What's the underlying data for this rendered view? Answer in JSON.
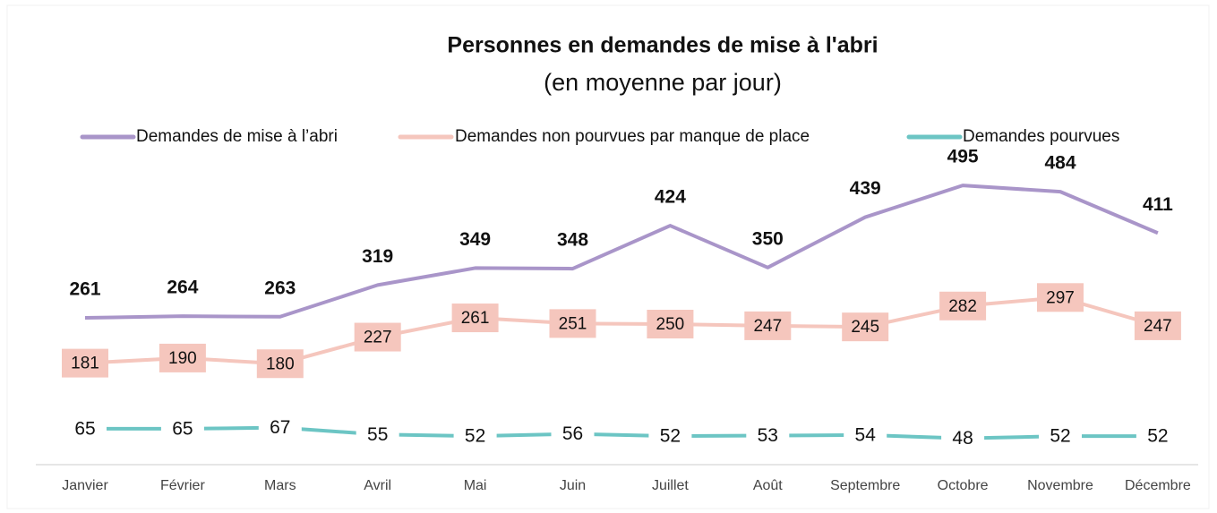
{
  "chart_data": {
    "type": "line",
    "title": "Personnes en demandes de mise à l'abri",
    "subtitle": "(en moyenne par jour)",
    "categories": [
      "Janvier",
      "Février",
      "Mars",
      "Avril",
      "Mai",
      "Juin",
      "Juillet",
      "Août",
      "Septembre",
      "Octobre",
      "Novembre",
      "Décembre"
    ],
    "series": [
      {
        "name": "Demandes de mise à l’abri",
        "color": "#a995c9",
        "values": [
          261,
          264,
          263,
          319,
          349,
          348,
          424,
          350,
          439,
          495,
          484,
          411
        ]
      },
      {
        "name": "Demandes non pourvues par manque de place",
        "color": "#f5c6bd",
        "values": [
          181,
          190,
          180,
          227,
          261,
          251,
          250,
          247,
          245,
          282,
          297,
          247
        ]
      },
      {
        "name": "Demandes pourvues",
        "color": "#6cc5c4",
        "values": [
          65,
          65,
          67,
          55,
          52,
          56,
          52,
          53,
          54,
          48,
          52,
          52
        ]
      }
    ]
  }
}
